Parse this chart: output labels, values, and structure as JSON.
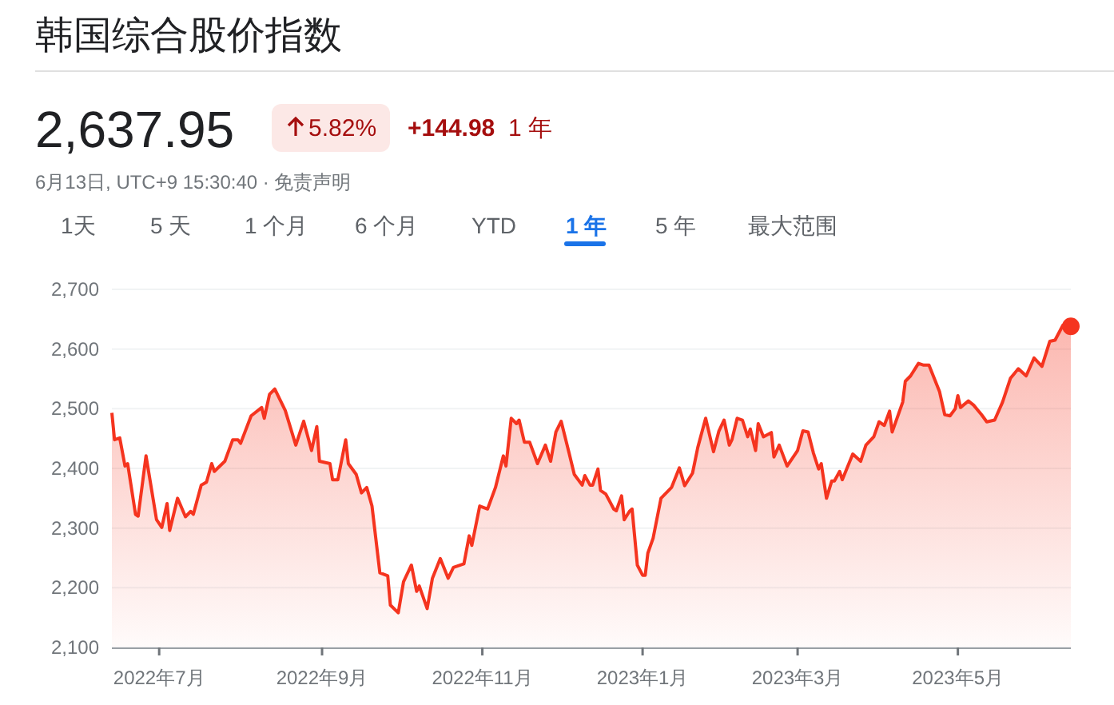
{
  "chart_data": {
    "type": "area",
    "title": "韩国综合股价指数",
    "subtitle": "2,637.95",
    "annotations": [
      "5.82%",
      "+144.98",
      "1 年",
      "6月13日, UTC+9 15:30:40 · 免责声明",
      "1天",
      "5 天",
      "1 个月",
      "6 个月",
      "YTD",
      "1 年",
      "5 年",
      "最大范围"
    ],
    "xlim": [
      "2022-06-13",
      "2023-06-13"
    ],
    "xticks": [
      {
        "value": "2022-07-01",
        "label": "2022年7月"
      },
      {
        "value": "2022-09-01",
        "label": "2022年9月"
      },
      {
        "value": "2022-11-01",
        "label": "2022年11月"
      },
      {
        "value": "2023-01-01",
        "label": "2023年1月"
      },
      {
        "value": "2023-03-01",
        "label": "2023年3月"
      },
      {
        "value": "2023-05-01",
        "label": "2023年5月"
      }
    ],
    "ylim": [
      2100,
      2700
    ],
    "yticks": [
      {
        "value": 2100,
        "label": "2,100"
      },
      {
        "value": 2200,
        "label": "2,200"
      },
      {
        "value": 2300,
        "label": "2,300"
      },
      {
        "value": 2400,
        "label": "2,400"
      },
      {
        "value": 2500,
        "label": "2,500"
      },
      {
        "value": 2600,
        "label": "2,600"
      },
      {
        "value": 2700,
        "label": "2,700"
      }
    ],
    "grid": "y",
    "marker": "none",
    "line_style": "solid",
    "series": [
      {
        "color": "#f5341f",
        "x": [
          "2022-06-13",
          "2022-06-14",
          "2022-06-16",
          "2022-06-18",
          "2022-06-19",
          "2022-06-22",
          "2022-06-23",
          "2022-06-26",
          "2022-06-30",
          "2022-07-02",
          "2022-07-04",
          "2022-07-05",
          "2022-07-08",
          "2022-07-11",
          "2022-07-13",
          "2022-07-14",
          "2022-07-17",
          "2022-07-19",
          "2022-07-21",
          "2022-07-22",
          "2022-07-26",
          "2022-07-29",
          "2022-07-31",
          "2022-08-01",
          "2022-08-05",
          "2022-08-09",
          "2022-08-10",
          "2022-08-12",
          "2022-08-14",
          "2022-08-16",
          "2022-08-18",
          "2022-08-22",
          "2022-08-25",
          "2022-08-28",
          "2022-08-30",
          "2022-08-31",
          "2022-09-04",
          "2022-09-05",
          "2022-09-07",
          "2022-09-10",
          "2022-09-11",
          "2022-09-14",
          "2022-09-16",
          "2022-09-18",
          "2022-09-20",
          "2022-09-23",
          "2022-09-26",
          "2022-09-27",
          "2022-09-30",
          "2022-10-02",
          "2022-10-05",
          "2022-10-07",
          "2022-10-08",
          "2022-10-11",
          "2022-10-13",
          "2022-10-16",
          "2022-10-19",
          "2022-10-21",
          "2022-10-25",
          "2022-10-27",
          "2022-10-28",
          "2022-10-31",
          "2022-11-03",
          "2022-11-06",
          "2022-11-09",
          "2022-11-10",
          "2022-11-12",
          "2022-11-14",
          "2022-11-15",
          "2022-11-17",
          "2022-11-19",
          "2022-11-22",
          "2022-11-25",
          "2022-11-27",
          "2022-11-29",
          "2022-12-01",
          "2022-12-04",
          "2022-12-06",
          "2022-12-09",
          "2022-12-10",
          "2022-12-12",
          "2022-12-13",
          "2022-12-15",
          "2022-12-16",
          "2022-12-18",
          "2022-12-21",
          "2022-12-22",
          "2022-12-24",
          "2022-12-25",
          "2022-12-27",
          "2022-12-28",
          "2022-12-30",
          "2023-01-01",
          "2023-01-02",
          "2023-01-03",
          "2023-01-05",
          "2023-01-08",
          "2023-01-10",
          "2023-01-12",
          "2023-01-15",
          "2023-01-17",
          "2023-01-20",
          "2023-01-22",
          "2023-01-25",
          "2023-01-28",
          "2023-01-30",
          "2023-02-01",
          "2023-02-03",
          "2023-02-04",
          "2023-02-06",
          "2023-02-08",
          "2023-02-10",
          "2023-02-11",
          "2023-02-13",
          "2023-02-14",
          "2023-02-16",
          "2023-02-19",
          "2023-02-20",
          "2023-02-22",
          "2023-02-25",
          "2023-03-01",
          "2023-03-03",
          "2023-03-05",
          "2023-03-07",
          "2023-03-09",
          "2023-03-10",
          "2023-03-12",
          "2023-03-14",
          "2023-03-15",
          "2023-03-17",
          "2023-03-18",
          "2023-03-22",
          "2023-03-25",
          "2023-03-27",
          "2023-03-30",
          "2023-04-01",
          "2023-04-03",
          "2023-04-05",
          "2023-04-06",
          "2023-04-10",
          "2023-04-11",
          "2023-04-13",
          "2023-04-16",
          "2023-04-18",
          "2023-04-20",
          "2023-04-24",
          "2023-04-26",
          "2023-04-28",
          "2023-04-30",
          "2023-05-01",
          "2023-05-02",
          "2023-05-05",
          "2023-05-07",
          "2023-05-10",
          "2023-05-12",
          "2023-05-15",
          "2023-05-18",
          "2023-05-21",
          "2023-05-24",
          "2023-05-27",
          "2023-05-30",
          "2023-06-02",
          "2023-06-05",
          "2023-06-07",
          "2023-06-10",
          "2023-06-13"
        ],
        "values": [
          2493,
          2448,
          2451,
          2404,
          2408,
          2323,
          2320,
          2421,
          2314,
          2301,
          2341,
          2296,
          2350,
          2319,
          2328,
          2323,
          2372,
          2377,
          2408,
          2395,
          2412,
          2448,
          2448,
          2442,
          2488,
          2502,
          2484,
          2524,
          2533,
          2515,
          2497,
          2439,
          2479,
          2430,
          2470,
          2412,
          2408,
          2381,
          2381,
          2448,
          2408,
          2390,
          2359,
          2368,
          2337,
          2225,
          2220,
          2171,
          2158,
          2210,
          2238,
          2194,
          2203,
          2165,
          2216,
          2249,
          2216,
          2234,
          2240,
          2287,
          2271,
          2337,
          2332,
          2368,
          2421,
          2404,
          2484,
          2475,
          2481,
          2444,
          2444,
          2408,
          2439,
          2412,
          2461,
          2479,
          2426,
          2390,
          2372,
          2388,
          2372,
          2372,
          2399,
          2363,
          2357,
          2332,
          2329,
          2354,
          2314,
          2328,
          2332,
          2238,
          2221,
          2221,
          2258,
          2283,
          2350,
          2359,
          2368,
          2401,
          2371,
          2392,
          2435,
          2484,
          2428,
          2462,
          2481,
          2439,
          2448,
          2484,
          2481,
          2453,
          2466,
          2430,
          2475,
          2453,
          2460,
          2419,
          2439,
          2404,
          2430,
          2463,
          2461,
          2426,
          2399,
          2408,
          2350,
          2379,
          2379,
          2395,
          2381,
          2424,
          2412,
          2439,
          2453,
          2478,
          2472,
          2496,
          2461,
          2511,
          2546,
          2555,
          2576,
          2573,
          2573,
          2529,
          2490,
          2488,
          2500,
          2522,
          2502,
          2513,
          2506,
          2490,
          2478,
          2481,
          2511,
          2551,
          2567,
          2555,
          2585,
          2571,
          2613,
          2615,
          2640,
          2638
        ]
      },
      {
        "type": "scatter",
        "marker": "circle",
        "color": "#f5341f",
        "x": [
          "2023-06-13"
        ],
        "values": [
          2638
        ]
      }
    ]
  }
}
